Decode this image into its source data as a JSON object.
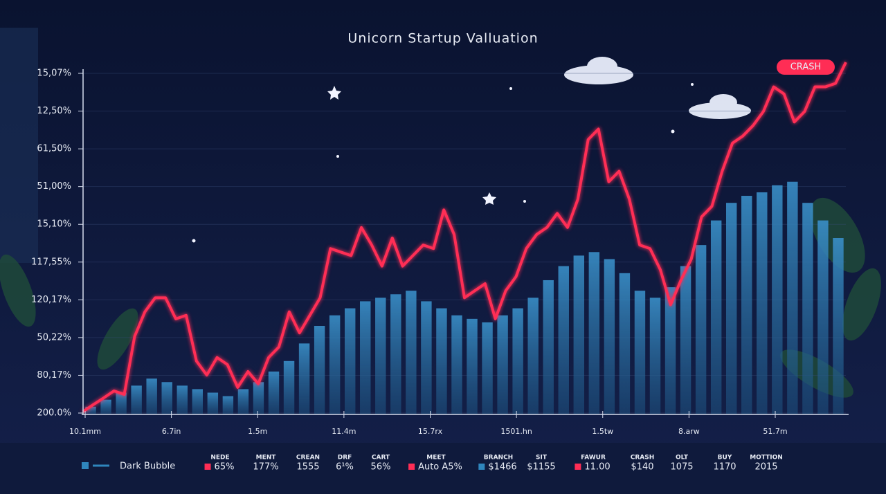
{
  "chart_data": {
    "type": "line",
    "title": "Unicorn Startup Valluation",
    "y_labels": [
      "15,07%",
      "12,50%",
      "61,50%",
      "51,00%",
      "15,10%",
      "117,55%",
      "120,17%",
      "50,22%",
      "80,17%",
      "200.0%"
    ],
    "x_labels": [
      "10.1mm",
      "6.7in",
      "1.5m",
      "11.4m",
      "15.7rx",
      "1501.hn",
      "1.5tw",
      "8.arw",
      "51.7m"
    ],
    "ylim": [
      0,
      100
    ],
    "annotation": "CRASH",
    "series": [
      {
        "name": "Dark Bubble",
        "color": "#2f86bd",
        "kind": "bar",
        "values": [
          2,
          4,
          6,
          8,
          10,
          9,
          8,
          7,
          6,
          5,
          7,
          9,
          12,
          15,
          20,
          25,
          28,
          30,
          32,
          33,
          34,
          35,
          32,
          30,
          28,
          27,
          26,
          28,
          30,
          33,
          38,
          42,
          45,
          46,
          44,
          40,
          35,
          33,
          36,
          42,
          48,
          55,
          60,
          62,
          63,
          65,
          66,
          60,
          55,
          50
        ]
      },
      {
        "color": "#ff2d55",
        "kind": "line",
        "values": [
          0.6,
          2.6,
          4.5,
          6.5,
          5.5,
          22,
          29,
          33,
          33,
          27,
          28,
          15,
          11,
          16,
          14,
          7.5,
          12,
          8.5,
          16,
          19,
          29,
          23,
          28,
          33,
          47,
          46,
          45,
          53,
          48,
          42,
          50,
          42,
          45,
          48,
          47,
          58,
          51,
          33,
          35,
          37,
          27,
          35,
          39,
          47,
          51,
          53,
          57,
          53,
          61,
          78,
          81,
          66,
          69,
          61,
          48,
          47,
          41,
          31,
          38,
          44,
          56,
          59,
          69,
          77,
          79,
          82,
          86,
          93,
          91,
          83,
          86,
          93,
          93,
          94,
          100
        ]
      }
    ],
    "stats": [
      {
        "label": "NEDE",
        "value": "65%",
        "color": "#ff2d55"
      },
      {
        "label": "MENT",
        "value": "177%"
      },
      {
        "label": "CREAN",
        "value": "1555"
      },
      {
        "label": "DRF",
        "value": "6¹%"
      },
      {
        "label": "CART",
        "value": "56%"
      },
      {
        "label": "MEET",
        "value": "Auto A5%",
        "color": "#ff2d55"
      },
      {
        "label": "BRANCH",
        "value": "$1466",
        "color": "#2f86bd"
      },
      {
        "label": "SIT",
        "value": "$1155"
      },
      {
        "label": "FAWUR",
        "value": "11.00",
        "color": "#ff2d55"
      },
      {
        "label": "CRASH",
        "value": "$140"
      },
      {
        "label": "OLT",
        "value": "1075"
      },
      {
        "label": "BUY",
        "value": "1170"
      },
      {
        "label": "MOTTION",
        "value": "2015"
      }
    ]
  }
}
